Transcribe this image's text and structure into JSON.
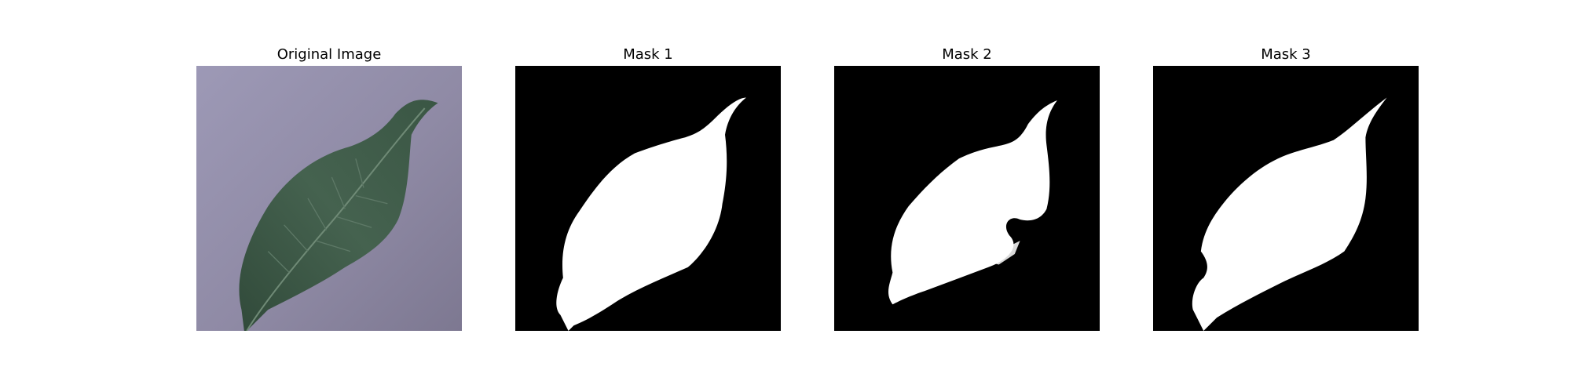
{
  "figure": {
    "panels": [
      {
        "title": "Original Image",
        "kind": "photo"
      },
      {
        "title": "Mask 1",
        "kind": "mask"
      },
      {
        "title": "Mask 2",
        "kind": "mask"
      },
      {
        "title": "Mask 3",
        "kind": "mask"
      }
    ]
  },
  "colors": {
    "photo_background": "#8f8aa5",
    "leaf": "#3f5b49",
    "leaf_vein": "#6f8a76",
    "mask_background": "#000000",
    "mask_foreground": "#ffffff"
  }
}
